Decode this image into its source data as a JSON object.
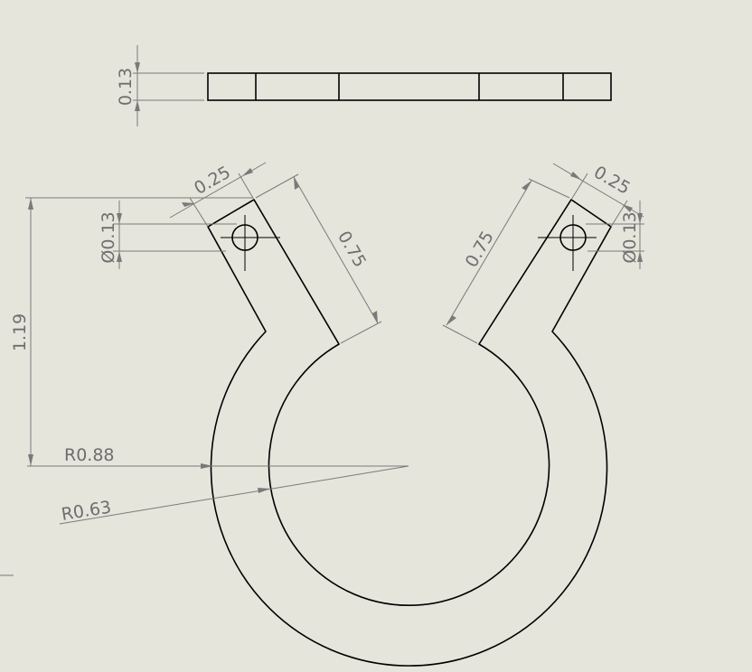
{
  "drawing": {
    "title": "",
    "views": {
      "top_view": {
        "thickness_label": "0.13"
      },
      "front_view": {
        "left_tab_width_label": "0.25",
        "left_hole_dia_label": "Ø0.13",
        "left_arm_length_label": "0.75",
        "right_arm_length_label": "0.75",
        "right_tab_width_label": "0.25",
        "right_hole_dia_label": "Ø0.13",
        "overall_height_label": "1.19",
        "outer_radius_label": "R0.88",
        "inner_radius_label": "R0.63"
      }
    }
  }
}
